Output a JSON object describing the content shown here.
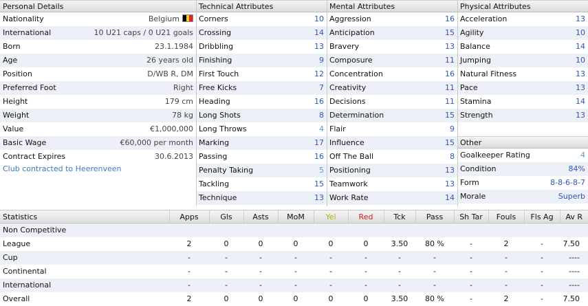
{
  "personal": {
    "title": "Personal Details",
    "rows": [
      {
        "label": "Nationality",
        "value": "Belgium"
      },
      {
        "label": "International",
        "value": "10 U21 caps / 0 U21 goals"
      },
      {
        "label": "Born",
        "value": "23.1.1984"
      },
      {
        "label": "Age",
        "value": "26 years old"
      },
      {
        "label": "Position",
        "value": "D/WB R, DM"
      },
      {
        "label": "Preferred Foot",
        "value": "Right"
      },
      {
        "label": "Height",
        "value": "179 cm"
      },
      {
        "label": "Weight",
        "value": "78 kg"
      },
      {
        "label": "Value",
        "value": "€1,000,000"
      },
      {
        "label": "Basic Wage",
        "value": "€60,000 per month"
      },
      {
        "label": "Contract Expires",
        "value": "30.6.2013"
      }
    ],
    "club_link": "Club contracted to Heerenveen",
    "flag_colors": [
      "#000000",
      "#f5d50a",
      "#e0212d"
    ]
  },
  "technical": {
    "title": "Technical Attributes",
    "rows": [
      {
        "label": "Corners",
        "value": "10"
      },
      {
        "label": "Crossing",
        "value": "14"
      },
      {
        "label": "Dribbling",
        "value": "13"
      },
      {
        "label": "Finishing",
        "value": "9"
      },
      {
        "label": "First Touch",
        "value": "12"
      },
      {
        "label": "Free Kicks",
        "value": "7"
      },
      {
        "label": "Heading",
        "value": "16"
      },
      {
        "label": "Long Shots",
        "value": "8"
      },
      {
        "label": "Long Throws",
        "value": "4"
      },
      {
        "label": "Marking",
        "value": "17"
      },
      {
        "label": "Passing",
        "value": "16"
      },
      {
        "label": "Penalty Taking",
        "value": "5"
      },
      {
        "label": "Tackling",
        "value": "15"
      },
      {
        "label": "Technique",
        "value": "13"
      }
    ]
  },
  "mental": {
    "title": "Mental Attributes",
    "rows": [
      {
        "label": "Aggression",
        "value": "16"
      },
      {
        "label": "Anticipation",
        "value": "15"
      },
      {
        "label": "Bravery",
        "value": "13"
      },
      {
        "label": "Composure",
        "value": "11"
      },
      {
        "label": "Concentration",
        "value": "16"
      },
      {
        "label": "Creativity",
        "value": "11"
      },
      {
        "label": "Decisions",
        "value": "11"
      },
      {
        "label": "Determination",
        "value": "15"
      },
      {
        "label": "Flair",
        "value": "9"
      },
      {
        "label": "Influence",
        "value": "15"
      },
      {
        "label": "Off The Ball",
        "value": "8"
      },
      {
        "label": "Positioning",
        "value": "13"
      },
      {
        "label": "Teamwork",
        "value": "13"
      },
      {
        "label": "Work Rate",
        "value": "14"
      }
    ]
  },
  "physical": {
    "title": "Physical Attributes",
    "rows": [
      {
        "label": "Acceleration",
        "value": "13"
      },
      {
        "label": "Agility",
        "value": "10"
      },
      {
        "label": "Balance",
        "value": "14"
      },
      {
        "label": "Jumping",
        "value": "10"
      },
      {
        "label": "Natural Fitness",
        "value": "13"
      },
      {
        "label": "Pace",
        "value": "13"
      },
      {
        "label": "Stamina",
        "value": "14"
      },
      {
        "label": "Strength",
        "value": "13"
      }
    ]
  },
  "other": {
    "title": "Other",
    "rows": [
      {
        "label": "Goalkeeper Rating",
        "value": "4"
      },
      {
        "label": "Condition",
        "value": "84%"
      },
      {
        "label": "Form",
        "value": "8-8-6-8-7"
      },
      {
        "label": "Morale",
        "value": "Superb"
      }
    ]
  },
  "statistics": {
    "columns": [
      "Statistics",
      "Apps",
      "Gls",
      "Asts",
      "MoM",
      "Yel",
      "Red",
      "Tck",
      "Pass",
      "Sh Tar",
      "Fouls",
      "Fls Ag",
      "Av R"
    ],
    "rows": [
      [
        "Non Competitive",
        "",
        "",
        "",
        "",
        "",
        "",
        "",
        "",
        "",
        "",
        "",
        ""
      ],
      [
        "League",
        "2",
        "0",
        "0",
        "0",
        "0",
        "0",
        "3.50",
        "80 %",
        "-",
        "2",
        "-",
        "7.50"
      ],
      [
        "Cup",
        "-",
        "-",
        "-",
        "-",
        "-",
        "-",
        "-",
        "-",
        "-",
        "-",
        "-",
        "----"
      ],
      [
        "Continental",
        "-",
        "-",
        "-",
        "-",
        "-",
        "-",
        "-",
        "-",
        "-",
        "-",
        "-",
        "----"
      ],
      [
        "International",
        "-",
        "-",
        "-",
        "-",
        "-",
        "-",
        "-",
        "-",
        "-",
        "-",
        "-",
        "----"
      ],
      [
        "Overall",
        "2",
        "0",
        "0",
        "0",
        "0",
        "0",
        "3.50",
        "80 %",
        "-",
        "2",
        "-",
        "7.50"
      ]
    ]
  }
}
